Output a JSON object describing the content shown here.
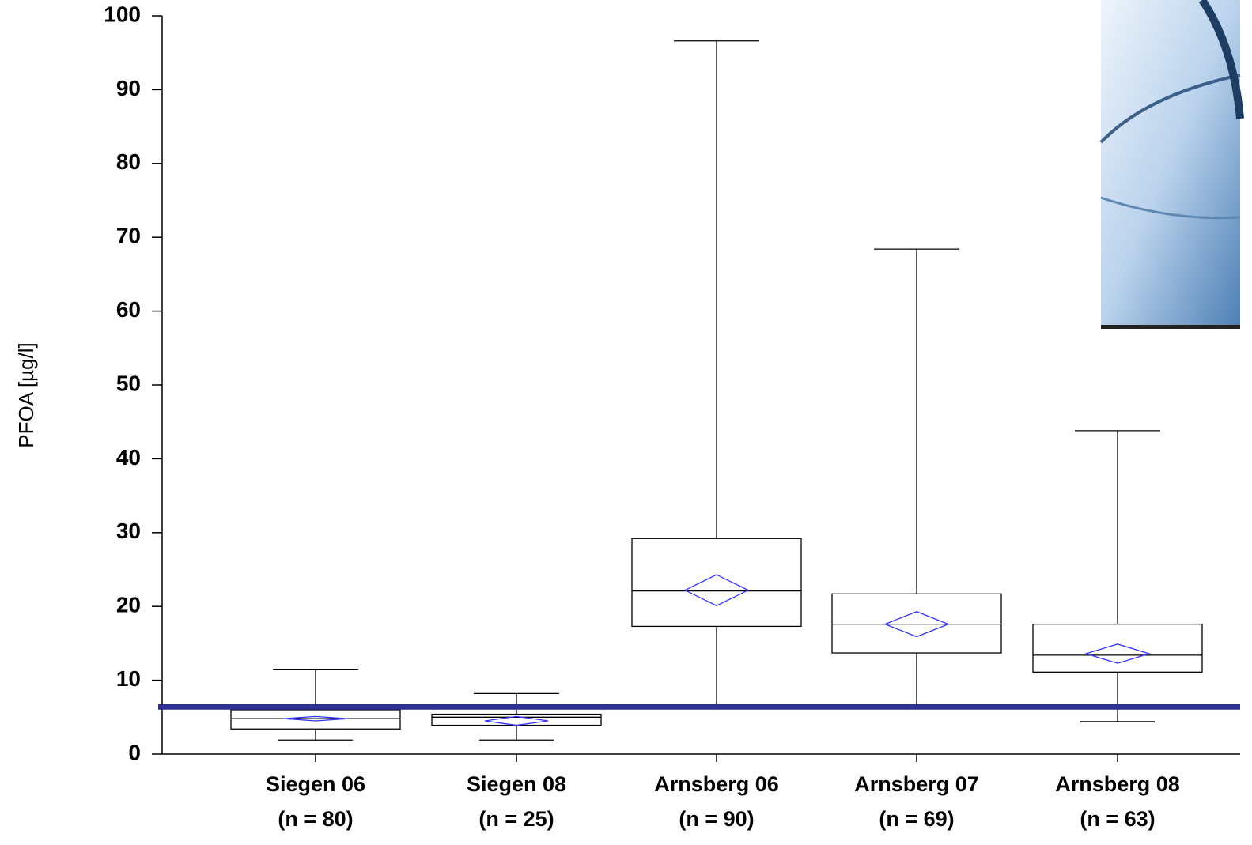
{
  "chart_data": {
    "type": "box",
    "y_label": "PFOA [µg/l]",
    "categories": [
      "Siegen  06",
      "Siegen  08",
      "Arnsberg  06",
      "Arnsberg  07",
      "Arnsberg  08"
    ],
    "category_notes": [
      "(n = 80)",
      "(n = 25)",
      "(n = 90)",
      "(n = 69)",
      "(n = 63)"
    ],
    "boxes": [
      {
        "min": 1.9,
        "q1": 3.4,
        "median": 4.8,
        "q3": 6.0,
        "max": 11.5,
        "mean": 4.8,
        "mean_ci": 0.3
      },
      {
        "min": 1.9,
        "q1": 3.9,
        "median": 5.0,
        "q3": 5.4,
        "max": 8.2,
        "mean": 4.5,
        "mean_ci": 0.6
      },
      {
        "min": 6.5,
        "q1": 17.3,
        "median": 22.1,
        "q3": 29.2,
        "max": 96.6,
        "mean": 22.2,
        "mean_ci": 2.1
      },
      {
        "min": 6.5,
        "q1": 13.7,
        "median": 17.6,
        "q3": 21.7,
        "max": 68.4,
        "mean": 17.6,
        "mean_ci": 1.7
      },
      {
        "min": 4.4,
        "q1": 11.1,
        "median": 13.4,
        "q3": 17.6,
        "max": 43.8,
        "mean": 13.6,
        "mean_ci": 1.3
      }
    ],
    "box_color": "#000000",
    "mean_color": "#3333ff",
    "reference_line": 6.4,
    "reference_color": "#2e3192",
    "ylim": [
      0,
      100
    ],
    "yticks": [
      0,
      10,
      20,
      30,
      40,
      50,
      60,
      70,
      80,
      90,
      100
    ]
  }
}
